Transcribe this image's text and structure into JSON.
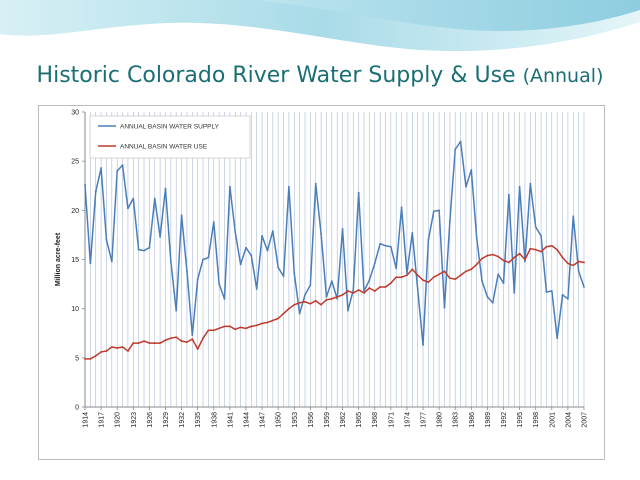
{
  "slide": {
    "title_main": "Historic Colorado River Water Supply & Use",
    "title_sub": "(Annual)"
  },
  "colors": {
    "title": "#1a6f74",
    "supply": "#4a7ebb",
    "use": "#c0392b",
    "gridline": "#aabbd4"
  },
  "chart_data": {
    "type": "line",
    "title": "",
    "xlabel": "",
    "ylabel": "Million acre-feet",
    "ylim": [
      0,
      30
    ],
    "yticks": [
      0,
      5,
      10,
      15,
      20,
      25,
      30
    ],
    "grid": "vertical gridlines at every year",
    "legend_position": "top-left",
    "x_start": 1914,
    "x_end": 2007,
    "x_tick_labels": [
      "1914",
      "1917",
      "1920",
      "1923",
      "1926",
      "1929",
      "1932",
      "1935",
      "1938",
      "1941",
      "1944",
      "1947",
      "1950",
      "1953",
      "1956",
      "1959",
      "1962",
      "1965",
      "1968",
      "1971",
      "1974",
      "1977",
      "1980",
      "1983",
      "1986",
      "1989",
      "1992",
      "1995",
      "1998",
      "2001",
      "2004",
      "2007"
    ],
    "series": [
      {
        "name": "ANNUAL BASIN WATER SUPPLY",
        "values": [
          22.6,
          14.6,
          21.9,
          24.3,
          17.0,
          14.8,
          24.0,
          24.6,
          20.2,
          21.2,
          16.0,
          15.9,
          16.2,
          21.2,
          17.3,
          22.2,
          14.8,
          9.8,
          19.5,
          13.8,
          7.3,
          13.0,
          15.0,
          15.2,
          18.8,
          12.5,
          11.0,
          22.4,
          17.8,
          14.5,
          16.2,
          15.4,
          12.0,
          17.4,
          15.9,
          17.9,
          14.2,
          13.3,
          22.4,
          13.6,
          9.5,
          11.4,
          12.4,
          22.7,
          17.6,
          11.2,
          12.8,
          11.0,
          18.1,
          9.8,
          11.9,
          21.8,
          11.8,
          12.9,
          14.6,
          16.6,
          16.4,
          16.3,
          14.1,
          20.3,
          13.6,
          17.7,
          12.0,
          6.3,
          17.0,
          19.9,
          20.0,
          10.1,
          18.9,
          26.2,
          27.0,
          22.4,
          24.1,
          17.2,
          12.8,
          11.2,
          10.6,
          13.5,
          12.6,
          21.6,
          11.6,
          22.4,
          14.8,
          22.7,
          18.3,
          17.4,
          11.7,
          11.8,
          7.0,
          11.4,
          11.0,
          19.4,
          13.8,
          12.2
        ]
      },
      {
        "name": "ANNUAL BASIN WATER USE",
        "values": [
          4.9,
          4.9,
          5.2,
          5.6,
          5.7,
          6.1,
          6.0,
          6.1,
          5.7,
          6.5,
          6.5,
          6.7,
          6.5,
          6.5,
          6.5,
          6.8,
          7.0,
          7.1,
          6.7,
          6.6,
          6.9,
          5.9,
          7.0,
          7.8,
          7.8,
          8.0,
          8.2,
          8.2,
          7.9,
          8.1,
          8.0,
          8.2,
          8.3,
          8.5,
          8.6,
          8.8,
          9.0,
          9.5,
          10.0,
          10.4,
          10.6,
          10.7,
          10.5,
          10.8,
          10.4,
          10.9,
          11.0,
          11.2,
          11.4,
          11.8,
          11.6,
          11.9,
          11.6,
          12.1,
          11.8,
          12.2,
          12.2,
          12.6,
          13.2,
          13.2,
          13.4,
          14.0,
          13.4,
          12.9,
          12.7,
          13.2,
          13.5,
          13.8,
          13.1,
          13.0,
          13.4,
          13.8,
          14.0,
          14.5,
          15.1,
          15.4,
          15.5,
          15.3,
          14.9,
          14.7,
          15.2,
          15.6,
          15.0,
          16.1,
          16.0,
          15.8,
          16.3,
          16.4,
          16.0,
          15.2,
          14.6,
          14.4,
          14.8,
          14.7
        ]
      }
    ]
  }
}
